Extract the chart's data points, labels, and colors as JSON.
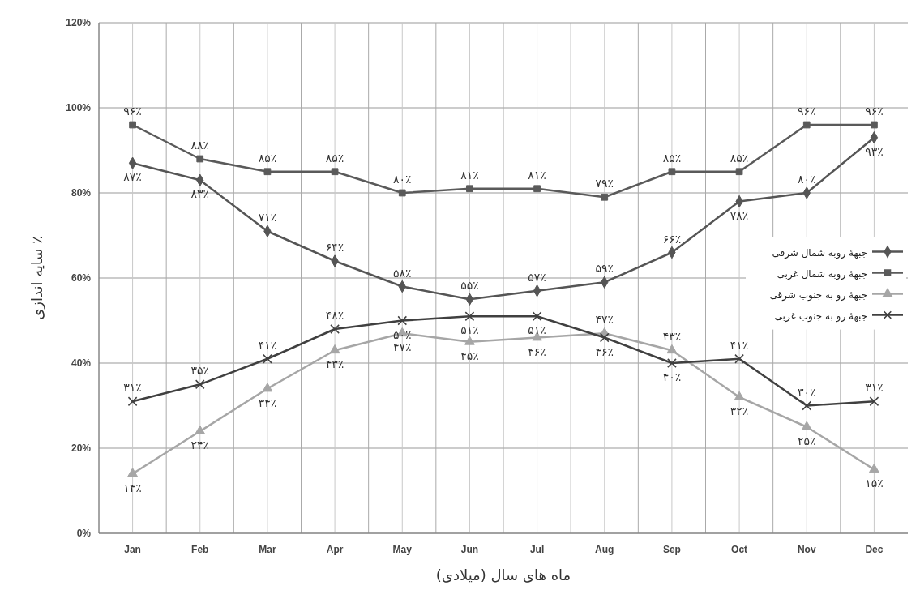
{
  "chart_data": {
    "type": "line",
    "xlabel": "ماه های سال (میلادی)",
    "ylabel": "سایه اندازی ٪",
    "categories": [
      "Jan",
      "Feb",
      "Mar",
      "Apr",
      "May",
      "Jun",
      "Jul",
      "Aug",
      "Sep",
      "Oct",
      "Nov",
      "Dec"
    ],
    "ylim": [
      0,
      120
    ],
    "yticks": [
      {
        "value": 0,
        "label": "0%"
      },
      {
        "value": 20,
        "label": "20%"
      },
      {
        "value": 40,
        "label": "40%"
      },
      {
        "value": 60,
        "label": "60%"
      },
      {
        "value": 80,
        "label": "80%"
      },
      {
        "value": 100,
        "label": "100%"
      },
      {
        "value": 120,
        "label": "120%"
      }
    ],
    "grid": true,
    "legend": "right",
    "line_style": "solid",
    "series": [
      {
        "name": "جبهۀ روبه شمال شرقی",
        "color": "#555555",
        "marker": "diamond",
        "values": [
          87,
          83,
          71,
          64,
          58,
          55,
          57,
          59,
          66,
          78,
          80,
          93
        ],
        "value_labels": [
          "۸۷٪",
          "۸۳٪",
          "۷۱٪",
          "۶۴٪",
          "۵۸٪",
          "۵۵٪",
          "۵۷٪",
          "۵۹٪",
          "۶۶٪",
          "۷۸٪",
          "۸۰٪",
          "۹۳٪"
        ]
      },
      {
        "name": "جبهۀ روبه شمال غربی",
        "color": "#5a5a5a",
        "marker": "square",
        "values": [
          96,
          88,
          85,
          85,
          80,
          81,
          81,
          79,
          85,
          85,
          96,
          96
        ],
        "value_labels": [
          "۹۶٪",
          "۸۸٪",
          "۸۵٪",
          "۸۵٪",
          "۸۰٪",
          "۸۱٪",
          "۸۱٪",
          "۷۹٪",
          "۸۵٪",
          "۸۵٪",
          "۹۶٪",
          "۹۶٪"
        ]
      },
      {
        "name": "جبهۀ رو به جنوب شرقی",
        "color": "#a6a6a6",
        "marker": "triangle",
        "values": [
          14,
          24,
          34,
          43,
          47,
          45,
          46,
          47,
          43,
          32,
          25,
          15
        ],
        "value_labels": [
          "۱۴٪",
          "۲۴٪",
          "۳۴٪",
          "۴۳٪",
          "۴۷٪",
          "۴۵٪",
          "۴۶٪",
          "۴۷٪",
          "۴۳٪",
          "۳۲٪",
          "۲۵٪",
          "۱۵٪"
        ]
      },
      {
        "name": "جبهۀ رو به جنوب غربی",
        "color": "#404040",
        "marker": "cross",
        "values": [
          31,
          35,
          41,
          48,
          50,
          51,
          51,
          46,
          40,
          41,
          30,
          31
        ],
        "value_labels": [
          "۳۱٪",
          "۳۵٪",
          "۴۱٪",
          "۴۸٪",
          "۵۰٪",
          "۵۱٪",
          "۵۱٪",
          "۴۶٪",
          "۴۰٪",
          "۴۱٪",
          "۳۰٪",
          "۳۱٪"
        ]
      }
    ]
  }
}
